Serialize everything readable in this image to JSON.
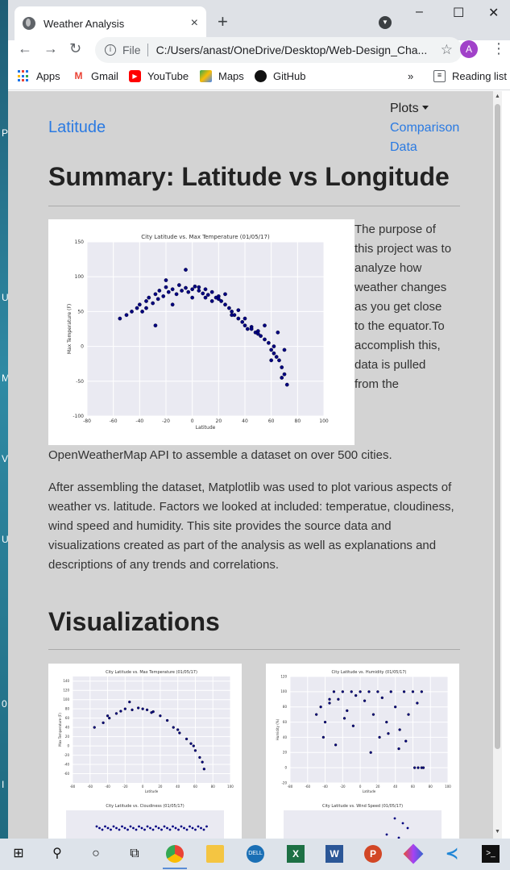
{
  "browser": {
    "tab_title": "Weather Analysis",
    "tab_close": "×",
    "new_tab": "+",
    "win_min": "–",
    "win_max": "☐",
    "win_close": "✕",
    "omnibox": {
      "scheme": "File",
      "url": "C:/Users/anast/OneDrive/Desktop/Web-Design_Cha..."
    },
    "profile_initial": "A",
    "bookmarks": [
      {
        "label": "Apps",
        "icon": "apps-grid-icon"
      },
      {
        "label": "Gmail",
        "icon": "gmail-icon"
      },
      {
        "label": "YouTube",
        "icon": "youtube-icon"
      },
      {
        "label": "Maps",
        "icon": "maps-icon"
      },
      {
        "label": "GitHub",
        "icon": "github-icon"
      }
    ],
    "bookmarks_more": "»",
    "reading_list": "Reading list"
  },
  "page": {
    "brand": "Latitude",
    "nav": {
      "plots": "Plots",
      "comparison": "Comparison",
      "data": "Data"
    },
    "title": "Summary: Latitude vs Longitude",
    "intro_lines": [
      "The purpose of",
      "this project was to",
      "analyze how",
      "weather changes",
      "as you get close",
      "to the equator.To",
      "accomplish this,",
      "data is pulled",
      "from the"
    ],
    "intro_rest": "OpenWeatherMap API to assemble a dataset on over 500 cities.",
    "paragraph2": "After assembling the dataset, Matplotlib was used to plot various aspects of weather vs. latitude. Factors we looked at included: temperatue, cloudiness, wind speed and humidity. This site provides the source data and visualizations created as part of the analysis as well as explanations and descriptions of any trends and correlations.",
    "viz_title": "Visualizations"
  },
  "chart_data": [
    {
      "type": "scatter",
      "title": "City Latitude vs. Max Temperature (01/05/17)",
      "xlabel": "Latitude",
      "ylabel": "Max Temperature (F)",
      "xlim": [
        -80,
        100
      ],
      "ylim": [
        -100,
        150
      ],
      "xticks": [
        -80,
        -60,
        -40,
        -20,
        0,
        20,
        40,
        60,
        80,
        100
      ],
      "yticks": [
        -100,
        -50,
        0,
        50,
        100,
        150
      ],
      "grid": true,
      "series": [
        {
          "x": [
            -55,
            -50,
            -46,
            -42,
            -40,
            -38,
            -35,
            -33,
            -30,
            -28,
            -26,
            -25,
            -22,
            -20,
            -18,
            -15,
            -12,
            -10,
            -8,
            -5,
            -3,
            0,
            2,
            5,
            8,
            10,
            12,
            15,
            18,
            20,
            22,
            25,
            28,
            30,
            32,
            35,
            38,
            40,
            42,
            45,
            48,
            50,
            52,
            55,
            58,
            60,
            62,
            64,
            66,
            68,
            70,
            72,
            -35,
            -20,
            -5,
            10,
            25,
            40,
            55,
            65,
            70,
            -28,
            -15,
            0,
            15,
            30,
            45,
            60,
            68,
            5,
            20,
            35,
            50,
            62
          ],
          "y": [
            40,
            45,
            50,
            55,
            60,
            50,
            65,
            70,
            62,
            75,
            68,
            80,
            72,
            85,
            78,
            82,
            75,
            88,
            80,
            84,
            78,
            82,
            86,
            80,
            76,
            82,
            74,
            78,
            70,
            72,
            65,
            60,
            55,
            50,
            45,
            40,
            35,
            30,
            25,
            28,
            20,
            22,
            15,
            10,
            5,
            -5,
            -10,
            -15,
            -20,
            -30,
            -40,
            -55,
            55,
            95,
            110,
            70,
            75,
            40,
            30,
            20,
            -5,
            30,
            60,
            70,
            65,
            45,
            25,
            -20,
            -45,
            85,
            68,
            52,
            18,
            0
          ]
        }
      ]
    },
    {
      "type": "scatter",
      "title": "City Latitude vs. Max Temperature (01/05/17)",
      "xlabel": "Latitude",
      "ylabel": "Max Temperature (F)",
      "xlim": [
        -80,
        100
      ],
      "ylim": [
        -80,
        150
      ],
      "xticks": [
        -80,
        -60,
        -40,
        -20,
        0,
        20,
        40,
        60,
        80,
        100
      ],
      "yticks": [
        -60,
        -40,
        -20,
        0,
        20,
        40,
        60,
        80,
        100,
        120,
        140
      ],
      "grid": true,
      "series": [
        {
          "x": [
            -55,
            -45,
            -38,
            -30,
            -25,
            -20,
            -12,
            -5,
            0,
            5,
            12,
            20,
            28,
            35,
            42,
            50,
            55,
            60,
            65,
            70,
            -40,
            -15,
            10,
            40,
            58,
            68
          ],
          "y": [
            40,
            50,
            60,
            70,
            75,
            80,
            78,
            82,
            80,
            78,
            74,
            65,
            55,
            40,
            28,
            15,
            5,
            -10,
            -25,
            -50,
            65,
            95,
            72,
            35,
            0,
            -35
          ]
        }
      ]
    },
    {
      "type": "scatter",
      "title": "City Latitude vs. Humidity (01/05/17)",
      "xlabel": "Latitude",
      "ylabel": "Humidity (%)",
      "xlim": [
        -80,
        100
      ],
      "ylim": [
        -20,
        120
      ],
      "xticks": [
        -80,
        -60,
        -40,
        -20,
        0,
        20,
        40,
        60,
        80,
        100
      ],
      "yticks": [
        -20,
        0,
        20,
        40,
        60,
        80,
        100,
        120
      ],
      "grid": true,
      "series": [
        {
          "x": [
            -50,
            -45,
            -40,
            -35,
            -30,
            -25,
            -20,
            -15,
            -10,
            -5,
            0,
            5,
            10,
            15,
            20,
            25,
            30,
            35,
            40,
            45,
            50,
            55,
            60,
            65,
            70,
            -42,
            -28,
            -8,
            12,
            32,
            52,
            62,
            66,
            70,
            72,
            -35,
            -18,
            22,
            44
          ],
          "y": [
            70,
            80,
            60,
            85,
            100,
            90,
            100,
            75,
            100,
            95,
            100,
            88,
            100,
            70,
            100,
            92,
            60,
            100,
            80,
            50,
            100,
            70,
            100,
            85,
            100,
            40,
            30,
            55,
            20,
            45,
            35,
            0,
            0,
            0,
            0,
            90,
            65,
            40,
            25
          ]
        }
      ]
    }
  ],
  "thumbnails_lower": [
    {
      "title": "City Latitude vs. Cloudiness (01/05/17)"
    },
    {
      "title": "City Latitude vs. Wind Speed (01/05/17)"
    }
  ],
  "colors": {
    "accent": "#2a7ae2",
    "page_bg": "#d3d3d3",
    "dot": "#000080"
  },
  "taskbar": {
    "items": [
      "windows-start-icon",
      "search-icon",
      "cortana-icon",
      "task-view-icon",
      "chrome-icon",
      "file-explorer-icon",
      "dell-icon",
      "excel-icon",
      "word-icon",
      "powerpoint-icon",
      "git-icon",
      "vscode-icon",
      "terminal-icon"
    ]
  }
}
